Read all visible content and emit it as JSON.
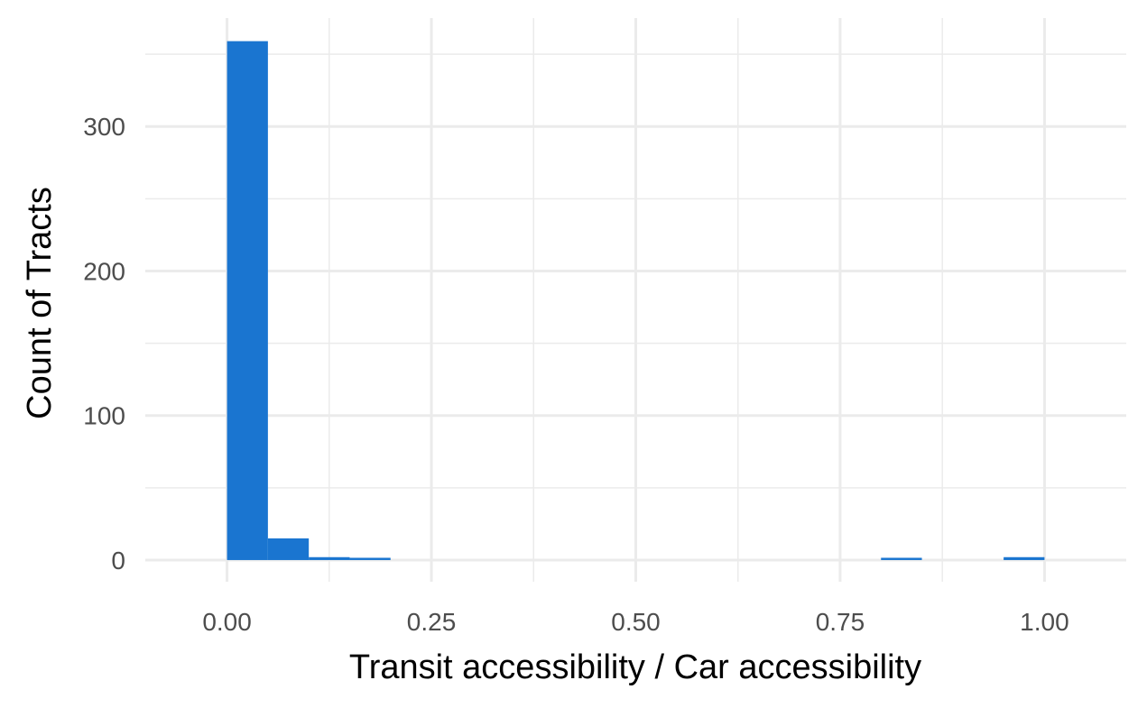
{
  "chart_data": {
    "type": "bar",
    "subtype": "histogram",
    "title": "",
    "xlabel": "Transit accessibility / Car accessibility",
    "ylabel": "Count of Tracts",
    "xlim": [
      -0.1,
      1.1
    ],
    "ylim": [
      -15,
      375
    ],
    "x_ticks": [
      0.0,
      0.25,
      0.5,
      0.75,
      1.0
    ],
    "x_tick_labels": [
      "0.00",
      "0.25",
      "0.50",
      "0.75",
      "1.00"
    ],
    "y_ticks": [
      0,
      100,
      200,
      300
    ],
    "y_tick_labels": [
      "0",
      "100",
      "200",
      "300"
    ],
    "grid": true,
    "bar_color": "#1a75d0",
    "grid_color": "#ebebeb",
    "bins": [
      {
        "x0": 0.0,
        "x1": 0.05,
        "count": 359
      },
      {
        "x0": 0.05,
        "x1": 0.1,
        "count": 15
      },
      {
        "x0": 0.1,
        "x1": 0.15,
        "count": 2
      },
      {
        "x0": 0.15,
        "x1": 0.2,
        "count": 1
      },
      {
        "x0": 0.2,
        "x1": 0.25,
        "count": 0
      },
      {
        "x0": 0.25,
        "x1": 0.3,
        "count": 0
      },
      {
        "x0": 0.3,
        "x1": 0.35,
        "count": 0
      },
      {
        "x0": 0.35,
        "x1": 0.4,
        "count": 0
      },
      {
        "x0": 0.4,
        "x1": 0.45,
        "count": 0
      },
      {
        "x0": 0.45,
        "x1": 0.5,
        "count": 0
      },
      {
        "x0": 0.5,
        "x1": 0.55,
        "count": 0
      },
      {
        "x0": 0.55,
        "x1": 0.6,
        "count": 0
      },
      {
        "x0": 0.6,
        "x1": 0.65,
        "count": 0
      },
      {
        "x0": 0.65,
        "x1": 0.7,
        "count": 0
      },
      {
        "x0": 0.7,
        "x1": 0.75,
        "count": 0
      },
      {
        "x0": 0.75,
        "x1": 0.8,
        "count": 0
      },
      {
        "x0": 0.8,
        "x1": 0.85,
        "count": 1
      },
      {
        "x0": 0.85,
        "x1": 0.9,
        "count": 0
      },
      {
        "x0": 0.9,
        "x1": 0.95,
        "count": 0
      },
      {
        "x0": 0.95,
        "x1": 1.0,
        "count": 2
      }
    ]
  }
}
